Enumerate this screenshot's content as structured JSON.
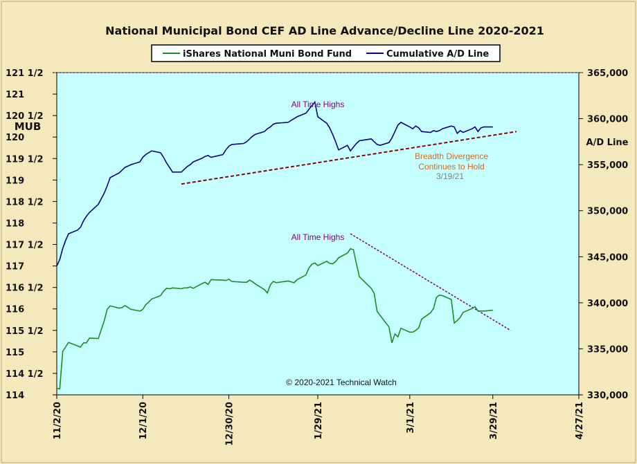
{
  "chart_data": {
    "type": "line",
    "title": "National Municipal Bond CEF AD Line Advance/Decline Line 2020-2021",
    "y_left_label": "MUB",
    "y_right_label": "A/D Line",
    "y_left_range": [
      114,
      121.5
    ],
    "y_right_range": [
      330000,
      365000
    ],
    "y_left_ticks": [
      "121 1/2",
      "121",
      "120 1/2",
      "120",
      "119 1/2",
      "119",
      "118 1/2",
      "118",
      "117 1/2",
      "117",
      "116 1/2",
      "116",
      "115 1/2",
      "115",
      "114 1/2",
      "114"
    ],
    "y_right_ticks": [
      "365,000",
      "360,000",
      "355,000",
      "350,000",
      "345,000",
      "340,000",
      "335,000",
      "330,000"
    ],
    "x_range": [
      "2020-11-02",
      "2021-04-27"
    ],
    "x_ticks": [
      "11/2/20",
      "12/1/20",
      "12/30/20",
      "1/29/21",
      "3/1/21",
      "3/29/21",
      "4/27/21"
    ],
    "grid": false,
    "legend_position": "top-center",
    "colors": {
      "plot_background": "#c6ffff",
      "page_background": "#f3e9bd",
      "mub": "#1e8c1e",
      "ad": "#00008b",
      "trend": "#8b0000",
      "annotation_high": "#800080",
      "annotation_divergence": "#d2691e",
      "annotation_date": "#808080"
    },
    "series": [
      {
        "name": "iShares National Muni Bond Fund",
        "axis": "left",
        "color": "#1e8c1e",
        "x": [
          "2020-11-02",
          "2020-11-03",
          "2020-11-04",
          "2020-11-05",
          "2020-11-06",
          "2020-11-09",
          "2020-11-10",
          "2020-11-11",
          "2020-11-12",
          "2020-11-13",
          "2020-11-16",
          "2020-11-17",
          "2020-11-18",
          "2020-11-19",
          "2020-11-20",
          "2020-11-23",
          "2020-11-24",
          "2020-11-25",
          "2020-11-27",
          "2020-11-30",
          "2020-12-01",
          "2020-12-02",
          "2020-12-03",
          "2020-12-04",
          "2020-12-07",
          "2020-12-08",
          "2020-12-09",
          "2020-12-10",
          "2020-12-11",
          "2020-12-14",
          "2020-12-15",
          "2020-12-16",
          "2020-12-17",
          "2020-12-18",
          "2020-12-21",
          "2020-12-22",
          "2020-12-23",
          "2020-12-24",
          "2020-12-28",
          "2020-12-29",
          "2020-12-30",
          "2020-12-31",
          "2021-01-04",
          "2021-01-05",
          "2021-01-06",
          "2021-01-07",
          "2021-01-08",
          "2021-01-11",
          "2021-01-12",
          "2021-01-13",
          "2021-01-14",
          "2021-01-15",
          "2021-01-19",
          "2021-01-20",
          "2021-01-21",
          "2021-01-22",
          "2021-01-25",
          "2021-01-26",
          "2021-01-27",
          "2021-01-28",
          "2021-01-29",
          "2021-02-01",
          "2021-02-02",
          "2021-02-03",
          "2021-02-04",
          "2021-02-05",
          "2021-02-08",
          "2021-02-09",
          "2021-02-10",
          "2021-02-11",
          "2021-02-12",
          "2021-02-16",
          "2021-02-17",
          "2021-02-18",
          "2021-02-19",
          "2021-02-22",
          "2021-02-23",
          "2021-02-24",
          "2021-02-25",
          "2021-02-26",
          "2021-03-01",
          "2021-03-02",
          "2021-03-03",
          "2021-03-04",
          "2021-03-05",
          "2021-03-08",
          "2021-03-09",
          "2021-03-10",
          "2021-03-11",
          "2021-03-12",
          "2021-03-15",
          "2021-03-16",
          "2021-03-17",
          "2021-03-18",
          "2021-03-19",
          "2021-03-22",
          "2021-03-23",
          "2021-03-24",
          "2021-03-25",
          "2021-03-26",
          "2021-03-29"
        ],
        "values": [
          114.15,
          114.14,
          115.01,
          115.12,
          115.22,
          115.14,
          115.11,
          115.21,
          115.21,
          115.32,
          115.31,
          115.52,
          115.72,
          115.99,
          116.07,
          116.02,
          116.03,
          116.08,
          115.99,
          115.95,
          115.99,
          116.1,
          116.16,
          116.23,
          116.31,
          116.41,
          116.48,
          116.47,
          116.49,
          116.47,
          116.49,
          116.49,
          116.51,
          116.48,
          116.59,
          116.62,
          116.57,
          116.68,
          116.67,
          116.66,
          116.69,
          116.64,
          116.62,
          116.62,
          116.67,
          116.63,
          116.58,
          116.45,
          116.37,
          116.56,
          116.64,
          116.61,
          116.65,
          116.63,
          116.61,
          116.68,
          116.79,
          116.95,
          117.04,
          117.07,
          117.01,
          117.11,
          117.06,
          117.05,
          117.1,
          117.19,
          117.3,
          117.4,
          117.38,
          117.06,
          116.75,
          116.48,
          116.36,
          115.94,
          115.85,
          115.58,
          115.21,
          115.42,
          115.35,
          115.55,
          115.46,
          115.46,
          115.5,
          115.56,
          115.76,
          115.91,
          116.01,
          116.27,
          116.32,
          116.31,
          116.22,
          115.67,
          115.73,
          115.8,
          115.92,
          116.01,
          116.05,
          115.95,
          115.95,
          115.95,
          115.97
        ]
      },
      {
        "name": "Cumulative A/D Line",
        "axis": "right",
        "color": "#00008b",
        "x": [
          "2020-11-02",
          "2020-11-03",
          "2020-11-04",
          "2020-11-05",
          "2020-11-06",
          "2020-11-09",
          "2020-11-10",
          "2020-11-11",
          "2020-11-12",
          "2020-11-13",
          "2020-11-16",
          "2020-11-17",
          "2020-11-18",
          "2020-11-19",
          "2020-11-20",
          "2020-11-23",
          "2020-11-24",
          "2020-11-25",
          "2020-11-27",
          "2020-11-30",
          "2020-12-01",
          "2020-12-02",
          "2020-12-03",
          "2020-12-04",
          "2020-12-07",
          "2020-12-08",
          "2020-12-09",
          "2020-12-10",
          "2020-12-11",
          "2020-12-14",
          "2020-12-15",
          "2020-12-16",
          "2020-12-17",
          "2020-12-18",
          "2020-12-21",
          "2020-12-22",
          "2020-12-23",
          "2020-12-24",
          "2020-12-28",
          "2020-12-29",
          "2020-12-30",
          "2020-12-31",
          "2021-01-04",
          "2021-01-05",
          "2021-01-06",
          "2021-01-07",
          "2021-01-08",
          "2021-01-11",
          "2021-01-12",
          "2021-01-13",
          "2021-01-14",
          "2021-01-15",
          "2021-01-19",
          "2021-01-20",
          "2021-01-21",
          "2021-01-22",
          "2021-01-25",
          "2021-01-26",
          "2021-01-27",
          "2021-01-28",
          "2021-01-29",
          "2021-02-01",
          "2021-02-02",
          "2021-02-03",
          "2021-02-04",
          "2021-02-05",
          "2021-02-08",
          "2021-02-09",
          "2021-02-10",
          "2021-02-11",
          "2021-02-12",
          "2021-02-16",
          "2021-02-17",
          "2021-02-18",
          "2021-02-19",
          "2021-02-22",
          "2021-02-23",
          "2021-02-24",
          "2021-02-25",
          "2021-02-26",
          "2021-03-01",
          "2021-03-02",
          "2021-03-03",
          "2021-03-04",
          "2021-03-05",
          "2021-03-08",
          "2021-03-09",
          "2021-03-10",
          "2021-03-11",
          "2021-03-12",
          "2021-03-15",
          "2021-03-16",
          "2021-03-17",
          "2021-03-18",
          "2021-03-19",
          "2021-03-22",
          "2021-03-23",
          "2021-03-24",
          "2021-03-25",
          "2021-03-26",
          "2021-03-29"
        ],
        "values": [
          344,
          344.7,
          345.9,
          346.8,
          347.5,
          347.9,
          348.2,
          348.9,
          349.4,
          349.8,
          350.7,
          351.3,
          351.9,
          352.7,
          353.6,
          354.1,
          354.4,
          354.7,
          355.0,
          355.3,
          355.8,
          356.1,
          356.3,
          356.5,
          356.3,
          355.8,
          355.2,
          354.7,
          354.2,
          354.2,
          354.5,
          354.8,
          355.0,
          355.3,
          355.7,
          355.9,
          356.0,
          355.8,
          356.1,
          356.6,
          357.0,
          357.2,
          357.3,
          357.5,
          357.8,
          358.1,
          358.3,
          358.6,
          358.9,
          359.1,
          359.4,
          359.5,
          359.6,
          359.8,
          360.0,
          360.2,
          360.6,
          361.0,
          361.4,
          361.8,
          360.2,
          359.5,
          359.0,
          358.3,
          357.5,
          356.6,
          357.1,
          356.5,
          356.9,
          357.3,
          357.6,
          357.8,
          357.5,
          357.2,
          357.1,
          357.4,
          357.9,
          358.6,
          359.3,
          359.6,
          359.1,
          358.9,
          359.2,
          359.0,
          358.6,
          358.5,
          358.7,
          358.6,
          358.7,
          358.9,
          359.2,
          359.1,
          358.4,
          358.7,
          358.5,
          358.9,
          359.1,
          358.6,
          359.0,
          359.1,
          359.1
        ]
      }
    ],
    "trend_lines": [
      {
        "axis": "right",
        "color": "#8b0000",
        "from": {
          "x": "2020-12-14",
          "y": 352.9
        },
        "to": {
          "x": "2021-04-06",
          "y": 358.6
        }
      },
      {
        "axis": "left",
        "color": "#800080",
        "from": {
          "x": "2021-02-09",
          "y": 117.75
        },
        "to": {
          "x": "2021-04-04",
          "y": 115.5
        }
      }
    ],
    "annotations": [
      {
        "text": "All Time Highs",
        "color": "#800080",
        "near": "upper-peak"
      },
      {
        "text": "Breadth Divergence",
        "color": "#d2691e",
        "near": "upper-right"
      },
      {
        "text": "Continues to Hold",
        "color": "#d2691e",
        "near": "upper-right"
      },
      {
        "text": "3/19/21",
        "color": "#808080",
        "near": "upper-right"
      },
      {
        "text": "All Time Highs",
        "color": "#800080",
        "near": "lower-peak"
      },
      {
        "text": "© 2020-2021 Technical Watch",
        "color": "#111111",
        "near": "bottom-center"
      }
    ]
  }
}
